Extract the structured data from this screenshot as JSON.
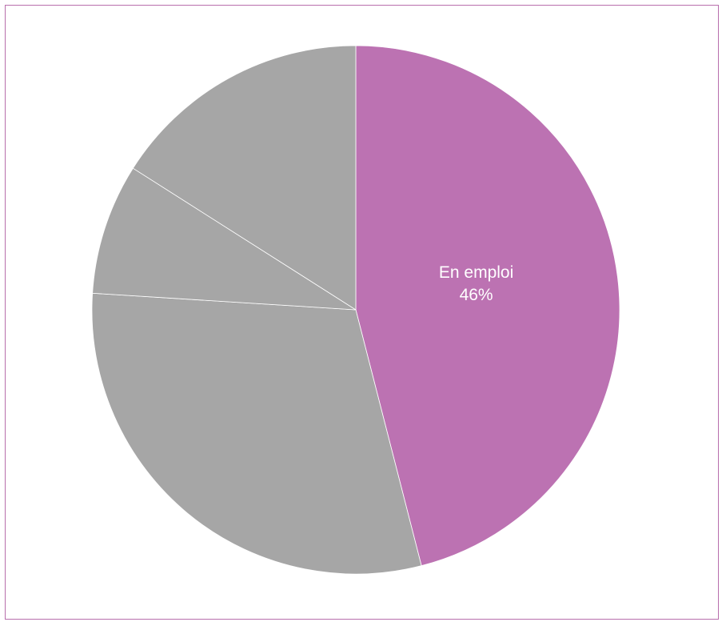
{
  "chart_data": {
    "type": "pie",
    "slices": [
      {
        "label": "En emploi",
        "value": 46,
        "value_label": "46%",
        "color": "#bc72b2",
        "show_label": true
      },
      {
        "value": 30,
        "color": "#a6a6a6",
        "show_label": false
      },
      {
        "value": 8,
        "color": "#a6a6a6",
        "show_label": false
      },
      {
        "value": 16,
        "color": "#a6a6a6",
        "show_label": false
      }
    ],
    "start_angle_deg": 0,
    "direction": "clockwise",
    "slice_border_color": "#ffffff",
    "frame_border_color": "#b86fac",
    "label_color": "#ffffff"
  }
}
